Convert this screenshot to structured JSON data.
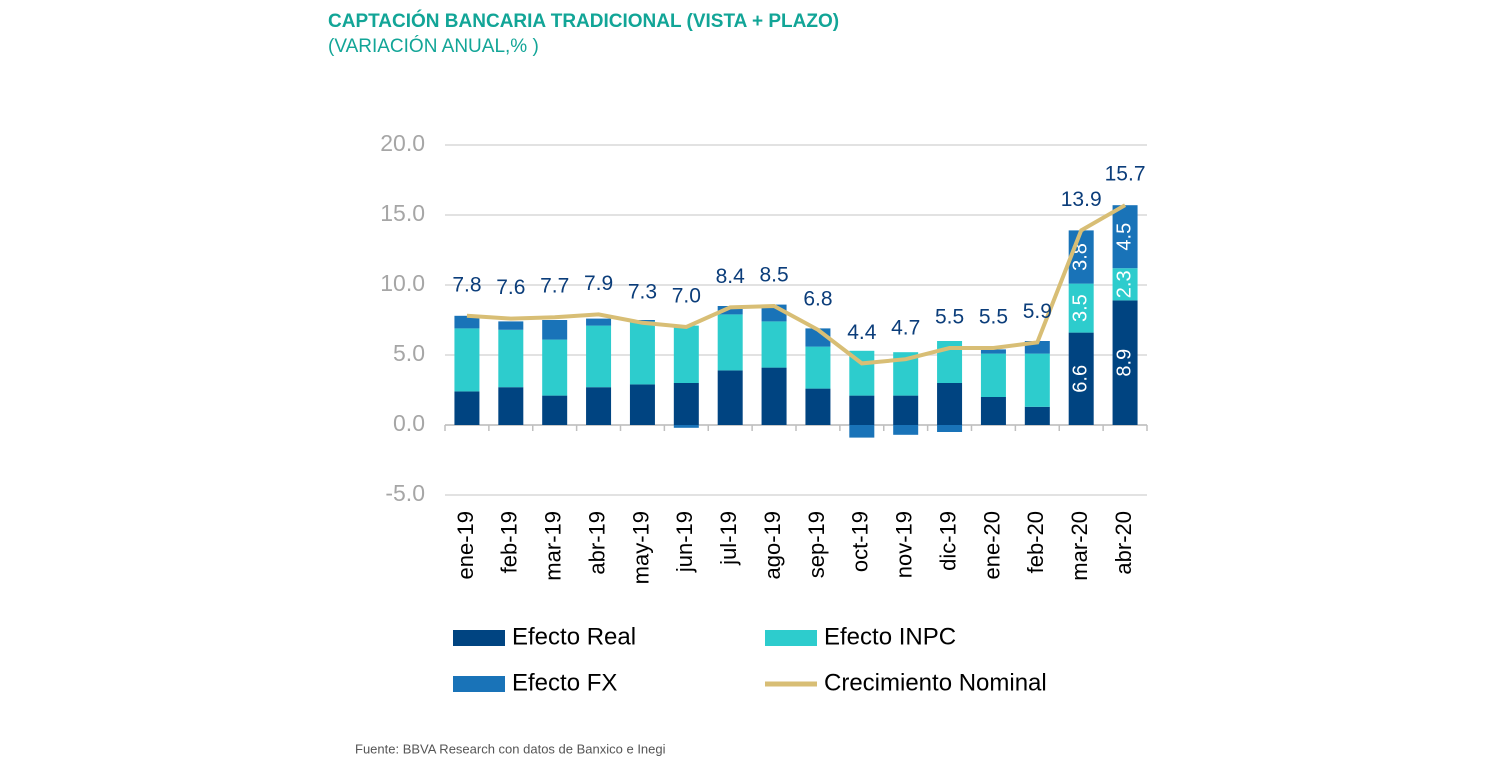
{
  "chart_data": {
    "type": "bar",
    "title": "CAPTACIÓN BANCARIA TRADICIONAL (VISTA + PLAZO)",
    "subtitle": "(VARIACIÓN ANUAL,% )",
    "source": "Fuente: BBVA Research con datos de Banxico e Inegi",
    "categories": [
      "ene-19",
      "feb-19",
      "mar-19",
      "abr-19",
      "may-19",
      "jun-19",
      "jul-19",
      "ago-19",
      "sep-19",
      "oct-19",
      "nov-19",
      "dic-19",
      "ene-20",
      "feb-20",
      "mar-20",
      "abr-20"
    ],
    "series": [
      {
        "name": "Efecto Real",
        "type": "bar",
        "color": "#004481",
        "values": [
          2.4,
          2.7,
          2.1,
          2.7,
          2.9,
          3.0,
          3.9,
          4.1,
          2.6,
          2.1,
          2.1,
          3.0,
          2.0,
          1.3,
          6.6,
          8.9
        ],
        "value_labels": [
          null,
          null,
          null,
          null,
          null,
          null,
          null,
          null,
          null,
          null,
          null,
          null,
          null,
          null,
          "6.6",
          "8.9"
        ]
      },
      {
        "name": "Efecto INPC",
        "type": "bar",
        "color": "#2dcccd",
        "values": [
          4.5,
          4.1,
          4.0,
          4.4,
          4.5,
          4.1,
          4.0,
          3.3,
          3.0,
          3.2,
          3.1,
          3.0,
          3.1,
          3.8,
          3.5,
          2.3
        ],
        "value_labels": [
          null,
          null,
          null,
          null,
          null,
          null,
          null,
          null,
          null,
          null,
          null,
          null,
          null,
          null,
          "3.5",
          "2.3"
        ]
      },
      {
        "name": "Efecto FX",
        "type": "bar",
        "color": "#1973b8",
        "values": [
          0.9,
          0.6,
          1.4,
          0.5,
          0.1,
          -0.2,
          0.6,
          1.2,
          1.3,
          -0.9,
          -0.7,
          -0.5,
          0.3,
          0.9,
          3.8,
          4.5
        ],
        "value_labels": [
          null,
          null,
          null,
          null,
          null,
          null,
          null,
          null,
          null,
          null,
          null,
          null,
          null,
          null,
          "3.8",
          "4.5"
        ]
      },
      {
        "name": "Crecimiento Nominal",
        "type": "line",
        "color": "#d8be75",
        "values": [
          7.8,
          7.6,
          7.7,
          7.9,
          7.3,
          7.0,
          8.4,
          8.5,
          6.8,
          4.4,
          4.7,
          5.5,
          5.5,
          5.9,
          13.9,
          15.7
        ],
        "value_labels": [
          "7.8",
          "7.6",
          "7.7",
          "7.9",
          "7.3",
          "7.0",
          "8.4",
          "8.5",
          "6.8",
          "4.4",
          "4.7",
          "5.5",
          "5.5",
          "5.9",
          "13.9",
          "15.7"
        ]
      }
    ],
    "ylim": [
      -5,
      20
    ],
    "yticks": [
      {
        "value": -5,
        "label": "-5.0"
      },
      {
        "value": 0,
        "label": "0.0"
      },
      {
        "value": 5,
        "label": "5.0"
      },
      {
        "value": 10,
        "label": "10.0"
      },
      {
        "value": 15,
        "label": "15.0"
      },
      {
        "value": 20,
        "label": "20.0"
      }
    ],
    "grid": true
  }
}
